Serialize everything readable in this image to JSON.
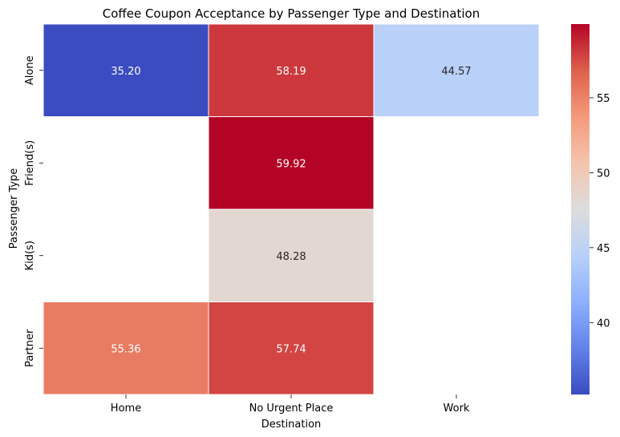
{
  "chart_data": {
    "type": "heatmap",
    "title": "Coffee Coupon Acceptance by Passenger Type and Destination",
    "xlabel": "Destination",
    "ylabel": "Passenger Type",
    "x_categories": [
      "Home",
      "No Urgent Place",
      "Work"
    ],
    "y_categories": [
      "Alone",
      "Friend(s)",
      "Kid(s)",
      "Partner"
    ],
    "values": [
      [
        35.2,
        58.19,
        44.57
      ],
      [
        null,
        59.92,
        null
      ],
      [
        null,
        48.28,
        null
      ],
      [
        55.36,
        57.74,
        null
      ]
    ],
    "value_labels": [
      [
        "35.20",
        "58.19",
        "44.57"
      ],
      [
        "",
        "59.92",
        ""
      ],
      [
        "",
        "48.28",
        ""
      ],
      [
        "55.36",
        "57.74",
        ""
      ]
    ],
    "colormap": "coolwarm",
    "color_range": [
      35.2,
      59.92
    ],
    "colorbar_ticks": [
      40,
      45,
      50,
      55
    ],
    "colorbar_tick_labels": [
      "40",
      "45",
      "50",
      "55"
    ],
    "grid": false,
    "legend": "colorbar-right"
  }
}
